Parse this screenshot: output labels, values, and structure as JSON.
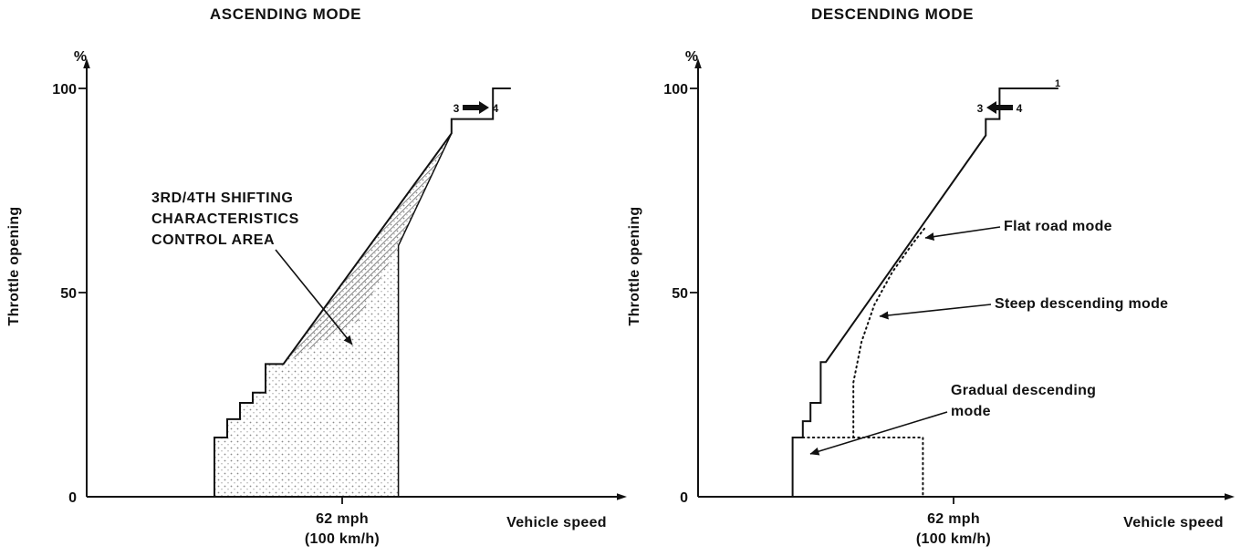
{
  "figure": {
    "background": "#ffffff",
    "ink": "#111111"
  },
  "chart_data": [
    {
      "type": "line",
      "title": "ASCENDING MODE",
      "xlabel": "Vehicle speed",
      "ylabel": "Throttle opening",
      "y_unit": "%",
      "ylim": [
        0,
        100
      ],
      "y_ticks": [
        100,
        50,
        0
      ],
      "y_tick_labels": [
        "100",
        "50",
        "0"
      ],
      "x_reference": {
        "label": "62 mph (100 km/h)",
        "x": 50
      },
      "x_ref_label_line1": "62 mph",
      "x_ref_label_line2": "(100 km/h)",
      "annotation_lines": [
        "3RD/4TH SHIFTING",
        "CHARACTERISTICS",
        "CONTROL AREA"
      ],
      "gear_shift": {
        "from": "3",
        "to": "4",
        "direction": "right"
      },
      "series": [
        {
          "name": "3rd/4th shift schedule line",
          "style": "solid",
          "points": [
            [
              25,
              0
            ],
            [
              25,
              14.5
            ],
            [
              27.5,
              14.5
            ],
            [
              27.5,
              19
            ],
            [
              30,
              19
            ],
            [
              30,
              23
            ],
            [
              32.5,
              23
            ],
            [
              32.5,
              25.5
            ],
            [
              35,
              25.5
            ],
            [
              35,
              32.5
            ],
            [
              38.5,
              32.5
            ],
            [
              71.4,
              89
            ],
            [
              71.4,
              92.5
            ],
            [
              79.5,
              92.5
            ],
            [
              79.5,
              100
            ],
            [
              83,
              100
            ]
          ]
        },
        {
          "name": "control area right boundary",
          "style": "solid",
          "points": [
            [
              71.4,
              89
            ],
            [
              61,
              61.5
            ],
            [
              61,
              0
            ]
          ]
        }
      ],
      "regions": [
        {
          "name": "3rd/4th shifting characteristics control area (stippled)",
          "fill": "stipple",
          "polygon": [
            [
              25,
              0
            ],
            [
              25,
              14.5
            ],
            [
              27.5,
              14.5
            ],
            [
              27.5,
              19
            ],
            [
              30,
              19
            ],
            [
              30,
              23
            ],
            [
              32.5,
              23
            ],
            [
              32.5,
              25.5
            ],
            [
              35,
              25.5
            ],
            [
              35,
              32.5
            ],
            [
              38.5,
              32.5
            ],
            [
              71.4,
              89
            ],
            [
              61,
              61.5
            ],
            [
              61,
              0
            ]
          ]
        },
        {
          "name": "hatched wedge under shift line",
          "fill": "hatch",
          "polygon": [
            [
              38.5,
              32.5
            ],
            [
              71.4,
              89
            ],
            [
              61,
              61.5
            ],
            [
              53,
              43
            ]
          ]
        }
      ]
    },
    {
      "type": "line",
      "title": "DESCENDING MODE",
      "xlabel": "Vehicle speed",
      "ylabel": "Throttle opening",
      "y_unit": "%",
      "ylim": [
        0,
        100
      ],
      "y_ticks": [
        100,
        50,
        0
      ],
      "y_tick_labels": [
        "100",
        "50",
        "0"
      ],
      "x_reference": {
        "label": "62 mph (100 km/h)",
        "x": 50
      },
      "x_ref_label_line1": "62 mph",
      "x_ref_label_line2": "(100 km/h)",
      "gear_shift": {
        "from": "3",
        "to": "4",
        "direction": "left"
      },
      "curve_end_label": "1",
      "gradual_label_line1": "Gradual descending",
      "gradual_label_line2": "mode",
      "series": [
        {
          "name": "Flat road mode",
          "style": "solid",
          "points": [
            [
              18.5,
              0
            ],
            [
              18.5,
              14.5
            ],
            [
              20.5,
              14.5
            ],
            [
              20.5,
              18.5
            ],
            [
              22,
              18.5
            ],
            [
              22,
              23
            ],
            [
              24,
              23
            ],
            [
              24,
              33
            ],
            [
              25,
              33
            ],
            [
              56.3,
              88.5
            ],
            [
              56.3,
              92.5
            ],
            [
              59,
              92.5
            ],
            [
              59,
              100
            ],
            [
              70.5,
              100
            ]
          ]
        },
        {
          "name": "Steep descending mode",
          "style": "dotted",
          "points": [
            [
              30.4,
              14.5
            ],
            [
              30.4,
              28
            ],
            [
              32,
              38
            ],
            [
              34.5,
              47
            ],
            [
              38,
              55
            ],
            [
              42,
              62
            ],
            [
              44.5,
              66
            ]
          ]
        },
        {
          "name": "Gradual descending mode",
          "style": "dotted",
          "points": [
            [
              20.5,
              14.5
            ],
            [
              44,
              14.5
            ],
            [
              44,
              0
            ]
          ]
        }
      ]
    }
  ]
}
